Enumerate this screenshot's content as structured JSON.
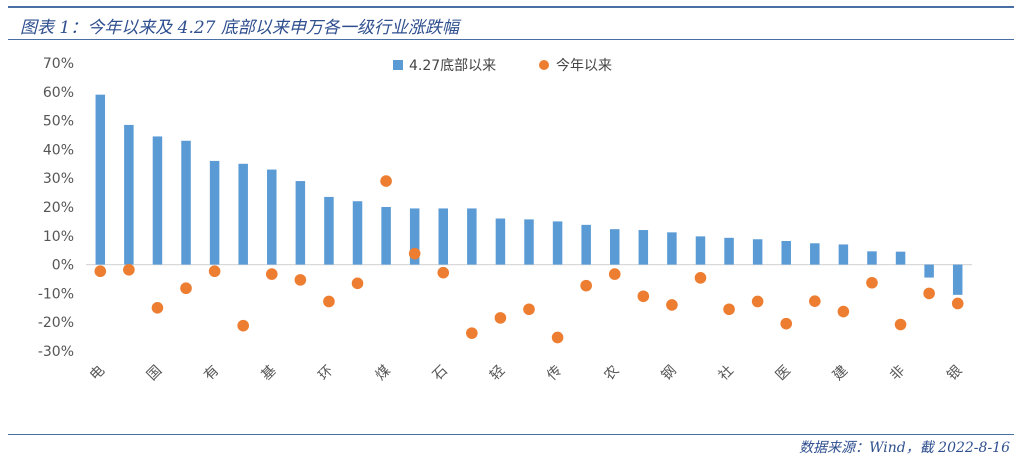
{
  "header": {
    "title": "图表 1：今年以来及 4.27 底部以来申万各一级行业涨跌幅"
  },
  "footer": {
    "source": "数据来源：Wind，截 2022-8-16"
  },
  "colors": {
    "bar": "#5b9bd5",
    "dot": "#ed7d31",
    "axis": "#d9d9d9",
    "title": "#2f4f8f"
  },
  "chart_data": {
    "type": "bar",
    "title": "",
    "xlabel": "",
    "ylabel": "",
    "ylim": [
      -30,
      70
    ],
    "yticks": [
      70,
      60,
      50,
      40,
      30,
      20,
      10,
      0,
      -10,
      -20,
      -30
    ],
    "ytick_labels": [
      "70%",
      "60%",
      "50%",
      "40%",
      "30%",
      "20%",
      "10%",
      "0%",
      "-10%",
      "-20%",
      "-30%"
    ],
    "grid": false,
    "legend_position": "top-center",
    "categories": [
      "电",
      "",
      "国",
      "",
      "有",
      "",
      "基",
      "",
      "环",
      "",
      "煤",
      "",
      "石",
      "",
      "轻",
      "",
      "传",
      "",
      "农",
      "",
      "钢",
      "",
      "社",
      "",
      "医",
      "",
      "建",
      "",
      "非",
      "",
      "银"
    ],
    "series": [
      {
        "name": "4.27底部以来",
        "type": "bar",
        "values": [
          59,
          48.5,
          44.5,
          43,
          36,
          35,
          33,
          29,
          23.5,
          22,
          20,
          19.5,
          19.5,
          19.5,
          16,
          15.7,
          15,
          13.8,
          12.3,
          12,
          11.2,
          9.8,
          9.3,
          8.8,
          8.2,
          7.4,
          7,
          4.6,
          4.5,
          -4.5,
          -10.5
        ]
      },
      {
        "name": "今年以来",
        "type": "scatter",
        "values": [
          -2.3,
          -1.8,
          -15,
          -8.2,
          -2.3,
          -21.2,
          -3.3,
          -5.3,
          -12.8,
          -6.5,
          29,
          3.8,
          -2.8,
          -23.8,
          -18.5,
          -15.5,
          -25.3,
          -7.3,
          -3.3,
          -11,
          -14,
          -4.6,
          -15.5,
          -12.8,
          -20.5,
          -12.7,
          -16.3,
          -6.3,
          -20.8,
          -10,
          -13.5
        ]
      }
    ]
  }
}
